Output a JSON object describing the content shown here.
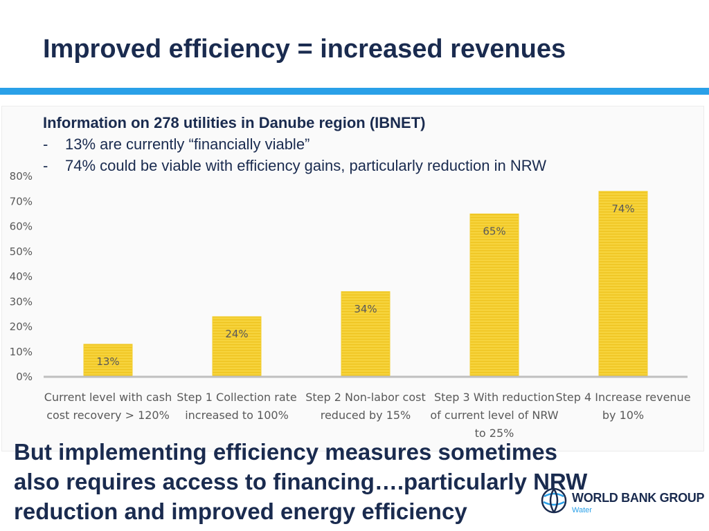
{
  "title": "Improved efficiency = increased revenues",
  "info": {
    "heading": "Information on 278 utilities in Danube region (IBNET)",
    "bullets": [
      {
        "dash": "-",
        "text": "13% are currently “financially viable”"
      },
      {
        "dash": "-",
        "text": "74% could be viable with efficiency gains, particularly reduction in NRW"
      }
    ]
  },
  "footer": {
    "text": "But implementing efficiency measures sometimes also requires access to financing….particularly NRW reduction and improved energy efficiency"
  },
  "logo": {
    "name": "WORLD BANK GROUP",
    "sub": "Water"
  },
  "colors": {
    "bar_fill": "#f6d33c",
    "bar_stripe": "#eec21c",
    "title": "#1a2b4f",
    "rule": "#2aa0e8",
    "text_gray": "#595959"
  },
  "chart_data": {
    "type": "bar",
    "categories": [
      [
        "Current level with cash",
        "cost recovery > 120%"
      ],
      [
        "Step 1 Collection rate",
        "increased to 100%"
      ],
      [
        "Step 2 Non-labor cost",
        "reduced by 15%"
      ],
      [
        "Step 3 With reduction",
        "of current level of NRW",
        "to 25%"
      ],
      [
        "Step 4 Increase revenue",
        "by 10%"
      ]
    ],
    "values": [
      13,
      24,
      34,
      65,
      74
    ],
    "data_labels": [
      "13%",
      "24%",
      "34%",
      "65%",
      "74%"
    ],
    "ylim": [
      0,
      80
    ],
    "yticks": [
      "0%",
      "10%",
      "20%",
      "30%",
      "40%",
      "50%",
      "60%",
      "70%",
      "80%"
    ],
    "grid": false,
    "legend": "none"
  }
}
